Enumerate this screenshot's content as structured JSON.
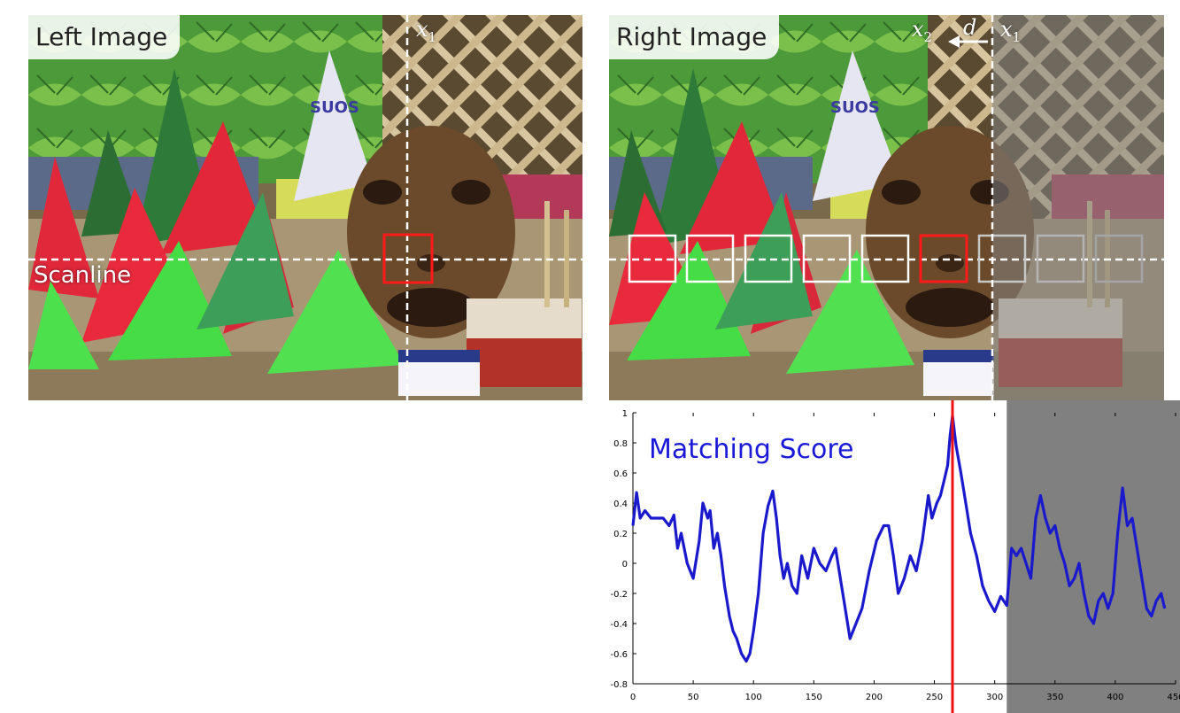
{
  "left_panel": {
    "title": "Left Image",
    "scanline_label": "Scanline",
    "column_label": "x",
    "column_sub": "1"
  },
  "right_panel": {
    "title": "Right Image",
    "x1_label": "x",
    "x1_sub": "1",
    "x2_label": "x",
    "x2_sub": "2",
    "disparity_label": "d"
  },
  "chart_data": {
    "type": "line",
    "title": "Matching Score",
    "xlabel": "",
    "ylabel": "",
    "xlim": [
      0,
      450
    ],
    "ylim": [
      -0.8,
      1
    ],
    "x_ticks": [
      "0",
      "50",
      "100",
      "150",
      "200",
      "250",
      "300",
      "350",
      "400",
      "450"
    ],
    "y_ticks": [
      "1",
      "0.8",
      "0.6",
      "0.4",
      "0.2",
      "0",
      "-0.2",
      "-0.4",
      "-0.6",
      "-0.8"
    ],
    "shaded_region_x": [
      310,
      450
    ],
    "peak_marker_x": 265,
    "series": [
      {
        "color": "#1a1acc",
        "x": [
          0,
          3,
          6,
          10,
          15,
          20,
          25,
          30,
          34,
          37,
          40,
          45,
          50,
          55,
          58,
          62,
          64,
          67,
          70,
          73,
          76,
          80,
          83,
          86,
          90,
          94,
          97,
          100,
          104,
          108,
          112,
          116,
          119,
          122,
          125,
          128,
          132,
          136,
          140,
          145,
          150,
          155,
          160,
          165,
          168,
          172,
          176,
          180,
          185,
          190,
          196,
          202,
          208,
          212,
          216,
          220,
          225,
          230,
          235,
          240,
          245,
          248,
          252,
          255,
          258,
          261,
          263,
          265,
          268,
          272,
          276,
          280,
          285,
          290,
          295,
          300,
          305,
          310,
          314,
          318,
          322,
          326,
          330,
          334,
          338,
          342,
          346,
          350,
          354,
          358,
          362,
          366,
          370,
          374,
          378,
          382,
          386,
          390,
          394,
          398,
          402,
          406,
          410,
          414,
          418,
          422,
          426,
          430,
          434,
          438,
          441
        ],
        "y": [
          0.25,
          0.47,
          0.3,
          0.35,
          0.3,
          0.3,
          0.3,
          0.25,
          0.32,
          0.1,
          0.2,
          0.0,
          -0.1,
          0.15,
          0.4,
          0.3,
          0.35,
          0.1,
          0.2,
          0.05,
          -0.15,
          -0.35,
          -0.45,
          -0.5,
          -0.6,
          -0.65,
          -0.6,
          -0.45,
          -0.2,
          0.2,
          0.38,
          0.48,
          0.3,
          0.05,
          -0.1,
          0.0,
          -0.15,
          -0.2,
          0.05,
          -0.1,
          0.1,
          0.0,
          -0.05,
          0.05,
          0.1,
          -0.1,
          -0.3,
          -0.5,
          -0.4,
          -0.3,
          -0.05,
          0.15,
          0.25,
          0.25,
          0.05,
          -0.2,
          -0.1,
          0.05,
          -0.05,
          0.15,
          0.45,
          0.3,
          0.4,
          0.45,
          0.55,
          0.65,
          0.85,
          0.98,
          0.78,
          0.6,
          0.4,
          0.2,
          0.05,
          -0.15,
          -0.25,
          -0.32,
          -0.22,
          -0.28,
          0.1,
          0.05,
          0.1,
          0.0,
          -0.1,
          0.3,
          0.45,
          0.3,
          0.2,
          0.25,
          0.1,
          0.0,
          -0.15,
          -0.1,
          0.0,
          -0.2,
          -0.35,
          -0.4,
          -0.25,
          -0.2,
          -0.3,
          -0.2,
          0.2,
          0.5,
          0.25,
          0.3,
          0.1,
          -0.1,
          -0.3,
          -0.35,
          -0.25,
          -0.2,
          -0.3
        ]
      }
    ]
  }
}
